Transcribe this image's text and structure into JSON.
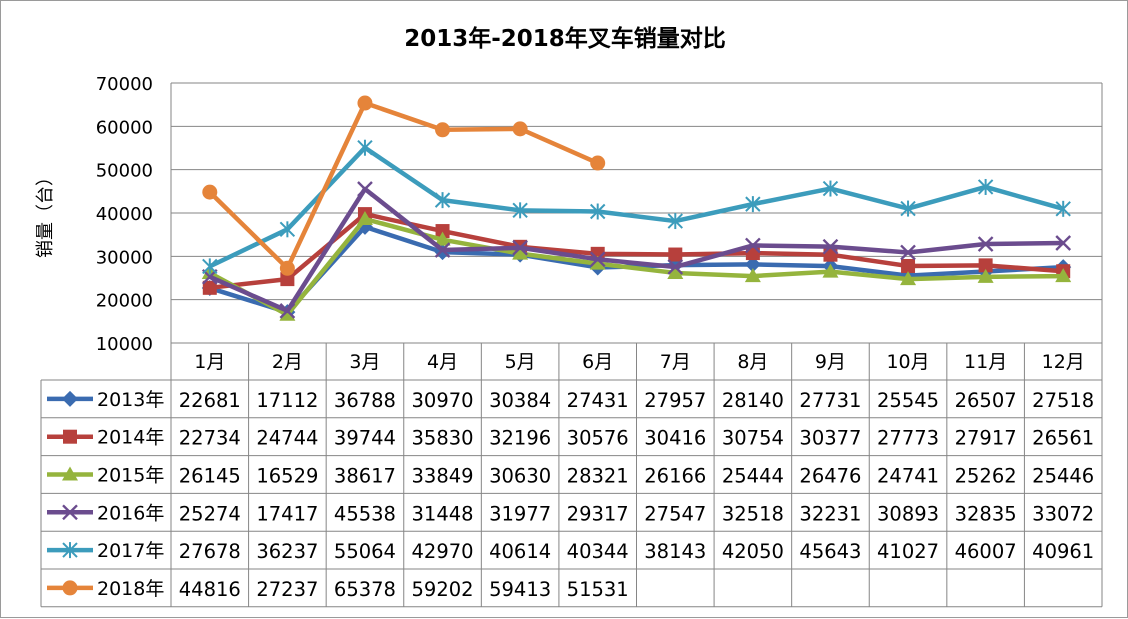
{
  "chart_data": {
    "type": "line",
    "title": "2013年-2018年叉车销量对比",
    "xlabel": "",
    "ylabel": "销量（台）",
    "ylim": [
      10000,
      70000
    ],
    "ytick_step": 10000,
    "grid": true,
    "legend": "data-table-left",
    "categories": [
      "1月",
      "2月",
      "3月",
      "4月",
      "5月",
      "6月",
      "7月",
      "8月",
      "9月",
      "10月",
      "11月",
      "12月"
    ],
    "series": [
      {
        "name": "2013年",
        "color": "#3a6bb0",
        "marker": "diamond",
        "values": [
          22681,
          17112,
          36788,
          30970,
          30384,
          27431,
          27957,
          28140,
          27731,
          25545,
          26507,
          27518
        ]
      },
      {
        "name": "2014年",
        "color": "#b7403c",
        "marker": "square",
        "values": [
          22734,
          24744,
          39744,
          35830,
          32196,
          30576,
          30416,
          30754,
          30377,
          27773,
          27917,
          26561
        ]
      },
      {
        "name": "2015年",
        "color": "#95b43d",
        "marker": "triangle",
        "values": [
          26145,
          16529,
          38617,
          33849,
          30630,
          28321,
          26166,
          25444,
          26476,
          24741,
          25262,
          25446
        ]
      },
      {
        "name": "2016年",
        "color": "#6b4c8e",
        "marker": "x",
        "values": [
          25274,
          17417,
          45538,
          31448,
          31977,
          29317,
          27547,
          32518,
          32231,
          30893,
          32835,
          33072
        ]
      },
      {
        "name": "2017年",
        "color": "#3c9cbc",
        "marker": "star",
        "values": [
          27678,
          36237,
          55064,
          42970,
          40614,
          40344,
          38143,
          42050,
          45643,
          41027,
          46007,
          40961
        ]
      },
      {
        "name": "2018年",
        "color": "#e5843a",
        "marker": "circle",
        "values": [
          44816,
          27237,
          65378,
          59202,
          59413,
          51531,
          null,
          null,
          null,
          null,
          null,
          null
        ]
      }
    ]
  }
}
